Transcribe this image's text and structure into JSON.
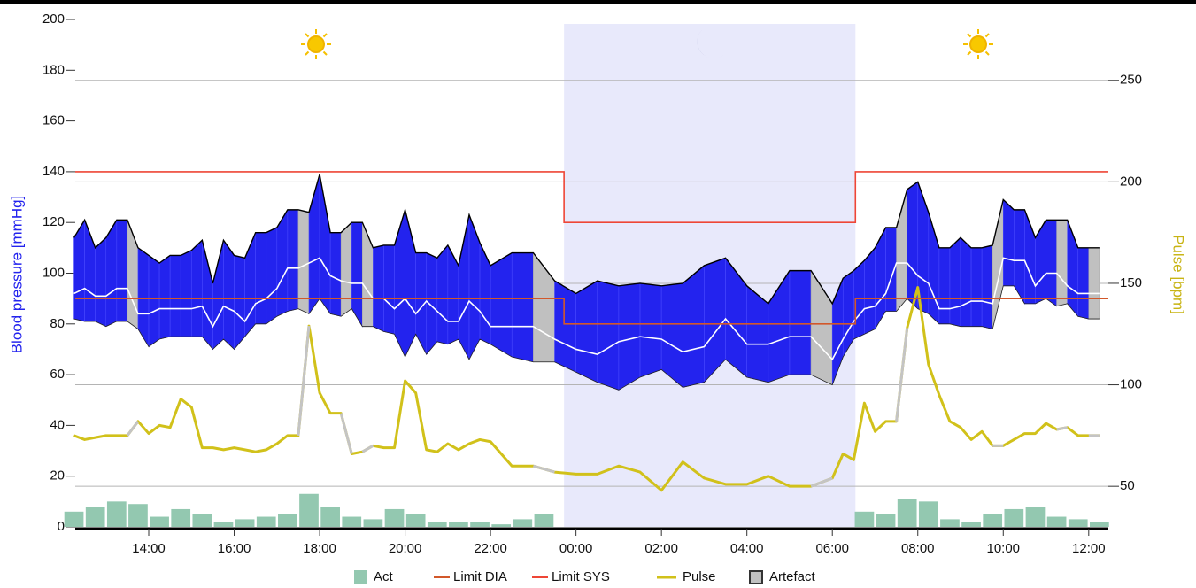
{
  "chart_data": {
    "type": "abpm",
    "y_label": "Blood pressure [mmHg]",
    "y2_label": "Pulse [bpm]",
    "xlim": [
      12.28,
      36.46
    ],
    "xticks": [
      {
        "value": 14,
        "label": "14:00"
      },
      {
        "value": 16,
        "label": "16:00"
      },
      {
        "value": 18,
        "label": "18:00"
      },
      {
        "value": 20,
        "label": "20:00"
      },
      {
        "value": 22,
        "label": "22:00"
      },
      {
        "value": 24,
        "label": "00:00"
      },
      {
        "value": 26,
        "label": "02:00"
      },
      {
        "value": 28,
        "label": "04:00"
      },
      {
        "value": 30,
        "label": "06:00"
      },
      {
        "value": 32,
        "label": "08:00"
      },
      {
        "value": 34,
        "label": "10:00"
      },
      {
        "value": 36,
        "label": "12:00"
      }
    ],
    "ylim": [
      0,
      200
    ],
    "yticks": [
      0,
      20,
      40,
      60,
      80,
      100,
      120,
      140,
      160,
      180,
      200
    ],
    "y2lim": [
      30,
      280
    ],
    "y2ticks": [
      50,
      100,
      150,
      200,
      250
    ],
    "grid": true,
    "night": [
      23.72,
      30.54
    ],
    "night_color": "#e8e9fb",
    "measurements": {
      "color": "#2323ee",
      "x": [
        12.25,
        12.5,
        12.75,
        13,
        13.25,
        13.5,
        13.75,
        14,
        14.25,
        14.5,
        14.75,
        15,
        15.25,
        15.5,
        15.75,
        16,
        16.25,
        16.5,
        16.75,
        17,
        17.25,
        17.5,
        17.75,
        18,
        18.25,
        18.5,
        18.75,
        19,
        19.25,
        19.5,
        19.75,
        20,
        20.25,
        20.5,
        20.75,
        21,
        21.25,
        21.5,
        21.75,
        22,
        22.5,
        23,
        23.5,
        24,
        24.5,
        25,
        25.5,
        26,
        26.5,
        27,
        27.5,
        28,
        28.5,
        29,
        29.5,
        30,
        30.25,
        30.5,
        30.75,
        31,
        31.25,
        31.5,
        31.75,
        32,
        32.25,
        32.5,
        32.75,
        33,
        33.25,
        33.5,
        33.75,
        34,
        34.25,
        34.5,
        34.75,
        35,
        35.25,
        35.5,
        35.75,
        36,
        36.25
      ],
      "sys": [
        114,
        121,
        110,
        114,
        121,
        121,
        110,
        107,
        104,
        107,
        107,
        109,
        113,
        96,
        113,
        107,
        106,
        116,
        116,
        118,
        125,
        125,
        124,
        139,
        116,
        116,
        120,
        120,
        110,
        111,
        111,
        125,
        108,
        108,
        106,
        111,
        103,
        123,
        112,
        103,
        108,
        108,
        97,
        92,
        97,
        95,
        96,
        95,
        96,
        103,
        106,
        95,
        88,
        101,
        101,
        88,
        98,
        101,
        105,
        110,
        118,
        118,
        133,
        136,
        124,
        110,
        110,
        114,
        110,
        110,
        111,
        129,
        125,
        125,
        114,
        121,
        121,
        121,
        110,
        110,
        110
      ],
      "dia": [
        82,
        81,
        81,
        79,
        81,
        81,
        78,
        71,
        74,
        75,
        75,
        75,
        75,
        70,
        74,
        70,
        75,
        80,
        80,
        83,
        85,
        86,
        84,
        90,
        84,
        83,
        86,
        79,
        79,
        77,
        76,
        67,
        76,
        68,
        73,
        72,
        74,
        66,
        74,
        72,
        67,
        65,
        65,
        61,
        57,
        54,
        59,
        62,
        55,
        57,
        66,
        59,
        57,
        60,
        60,
        56,
        67,
        74,
        76,
        78,
        85,
        85,
        90,
        86,
        84,
        80,
        80,
        79,
        79,
        79,
        78,
        95,
        95,
        88,
        88,
        90,
        87,
        88,
        83,
        82,
        82
      ],
      "mean": [
        92,
        94,
        91,
        91,
        94,
        94,
        84,
        84,
        86,
        86,
        86,
        86,
        87,
        79,
        87,
        85,
        81,
        88,
        90,
        94,
        102,
        102,
        104,
        106,
        99,
        97,
        96,
        96,
        90,
        90,
        86,
        90,
        84,
        89,
        85,
        81,
        81,
        89,
        85,
        79,
        79,
        79,
        74,
        70,
        68,
        73,
        75,
        74,
        69,
        71,
        82,
        72,
        72,
        75,
        75,
        66,
        74,
        81,
        86,
        87,
        92,
        104,
        104,
        99,
        96,
        86,
        86,
        87,
        89,
        89,
        88,
        106,
        105,
        105,
        95,
        100,
        100,
        95,
        92,
        92,
        92
      ]
    },
    "series": [
      {
        "name": "Act",
        "kind": "bar",
        "color": "#93c8b0",
        "x": [
          12.25,
          12.75,
          13.25,
          13.75,
          14.25,
          14.75,
          15.25,
          15.75,
          16.25,
          16.75,
          17.25,
          17.75,
          18.25,
          18.75,
          19.25,
          19.75,
          20.25,
          20.75,
          21.25,
          21.75,
          22.25,
          22.75,
          23.25,
          23.75,
          24.25,
          24.75,
          25.25,
          25.75,
          26.25,
          26.75,
          27.25,
          27.75,
          28.25,
          28.75,
          29.25,
          29.75,
          30.25,
          30.75,
          31.25,
          31.75,
          32.25,
          32.75,
          33.25,
          33.75,
          34.25,
          34.75,
          35.25,
          35.75,
          36.25
        ],
        "values": [
          6,
          8,
          10,
          9,
          4,
          7,
          5,
          2,
          3,
          4,
          5,
          13,
          8,
          4,
          3,
          7,
          5,
          2,
          2,
          2,
          1,
          3,
          5,
          0,
          0,
          0,
          0,
          0,
          0,
          0,
          0,
          0,
          0,
          0,
          0,
          0,
          0,
          6,
          5,
          11,
          10,
          3,
          2,
          5,
          7,
          8,
          4,
          3,
          2
        ]
      },
      {
        "name": "Limit DIA",
        "kind": "limit",
        "color": "#d2582a",
        "day": 90,
        "night": 80
      },
      {
        "name": "Limit SYS",
        "kind": "limit",
        "color": "#ee4636",
        "day": 140,
        "night": 120
      },
      {
        "name": "Pulse",
        "kind": "line",
        "axis": "y2",
        "color": "#d1c11a",
        "values": [
          75,
          73,
          74,
          75,
          75,
          75,
          82,
          76,
          80,
          79,
          93,
          89,
          69,
          69,
          68,
          69,
          68,
          67,
          68,
          71,
          75,
          75,
          129,
          96,
          86,
          86,
          66,
          67,
          70,
          69,
          69,
          102,
          96,
          68,
          67,
          71,
          68,
          71,
          73,
          72,
          60,
          60,
          57,
          56,
          56,
          60,
          57,
          48,
          62,
          54,
          51,
          51,
          55,
          50,
          50,
          54,
          66,
          63,
          91,
          77,
          82,
          82,
          128,
          148,
          110,
          95,
          82,
          79,
          73,
          77,
          70,
          70,
          73,
          76,
          76,
          81,
          78,
          79,
          75,
          75,
          75
        ]
      },
      {
        "name": "Artefact",
        "kind": "artefact",
        "color": "#c0c0c0",
        "ranges": [
          [
            13.5,
            13.75
          ],
          [
            17.5,
            17.75
          ],
          [
            18.5,
            18.75
          ],
          [
            19.0,
            19.25
          ],
          [
            23.0,
            23.5
          ],
          [
            29.5,
            30.0
          ],
          [
            31.5,
            31.75
          ],
          [
            33.75,
            34.0
          ],
          [
            35.25,
            35.5
          ],
          [
            36.0,
            36.25
          ]
        ]
      }
    ]
  }
}
